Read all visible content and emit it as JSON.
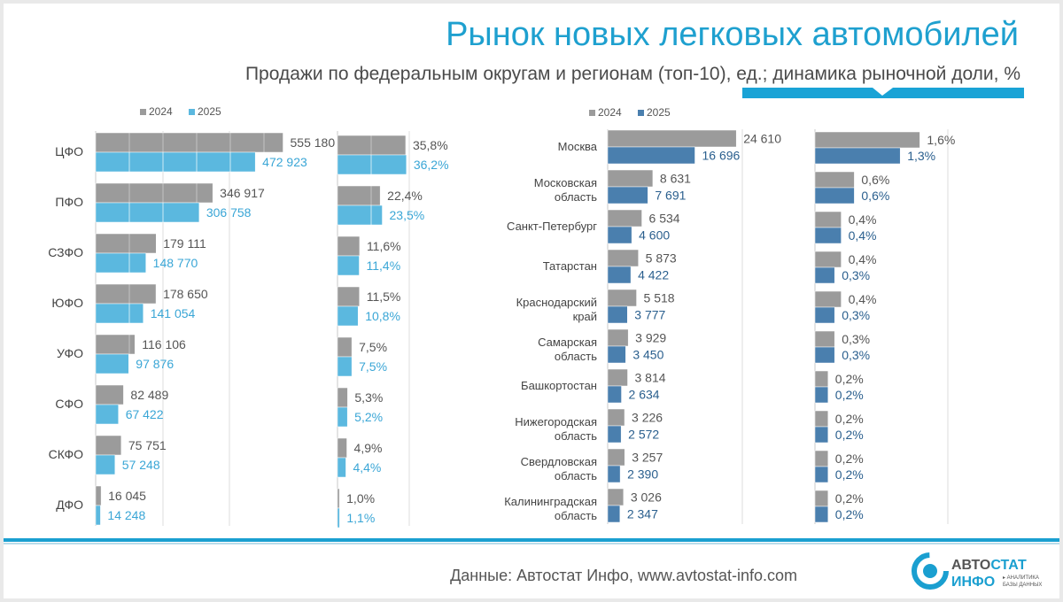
{
  "title": "Рынок новых легковых автомобилей",
  "subtitle": "Продажи по федеральным округам и регионам (топ-10), ед.; динамика рыночной доли, %",
  "footer": {
    "source": "Данные: Автостат Инфо, www.avtostat-info.com",
    "logo_line1_a": "АВТО",
    "logo_line1_b": "СТАТ",
    "logo_line2": "ИНФО",
    "logo_tag1": "▸ АНАЛИТИКА",
    "logo_tag2": "БАЗЫ ДАННЫХ"
  },
  "colors": {
    "y2024": "#9b9b9b",
    "y2025_districts": "#5bb8df",
    "y2025_regions": "#4a7fae",
    "title": "#1ea0cf",
    "accent_bar": "#1a9fd0"
  },
  "chart_data": [
    {
      "id": "districts-sales",
      "type": "bar",
      "orientation": "horizontal",
      "legend": [
        "2024",
        "2025"
      ],
      "categories": [
        "ЦФО",
        "ПФО",
        "СЗФО",
        "ЮФО",
        "УФО",
        "СФО",
        "СКФО",
        "ДФО"
      ],
      "series": [
        {
          "name": "2024",
          "values": [
            555180,
            346917,
            179111,
            178650,
            116106,
            82489,
            75751,
            16045
          ],
          "labels": [
            "555 180",
            "346 917",
            "179 111",
            "178 650",
            "116 106",
            "82 489",
            "75 751",
            "16 045"
          ]
        },
        {
          "name": "2025",
          "values": [
            472923,
            306758,
            148770,
            141054,
            97876,
            67422,
            57248,
            14248
          ],
          "labels": [
            "472 923",
            "306 758",
            "148 770",
            "141 054",
            "97 876",
            "67 422",
            "57 248",
            "14 248"
          ]
        }
      ],
      "xlim": [
        0,
        800000
      ],
      "grid": true
    },
    {
      "id": "districts-share",
      "type": "bar",
      "orientation": "horizontal",
      "categories": [
        "ЦФО",
        "ПФО",
        "СЗФО",
        "ЮФО",
        "УФО",
        "СФО",
        "СКФО",
        "ДФО"
      ],
      "series": [
        {
          "name": "2024",
          "values": [
            35.8,
            22.4,
            11.6,
            11.5,
            7.5,
            5.3,
            4.9,
            1.0
          ],
          "labels": [
            "35,8%",
            "22,4%",
            "11,6%",
            "11,5%",
            "7,5%",
            "5,3%",
            "4,9%",
            "1,0%"
          ]
        },
        {
          "name": "2025",
          "values": [
            36.2,
            23.5,
            11.4,
            10.8,
            7.5,
            5.2,
            4.4,
            1.1
          ],
          "labels": [
            "36,2%",
            "23,5%",
            "11,4%",
            "10,8%",
            "7,5%",
            "5,2%",
            "4,4%",
            "1,1%"
          ]
        }
      ],
      "xlim": [
        0,
        50
      ],
      "grid": true
    },
    {
      "id": "regions-sales",
      "type": "bar",
      "orientation": "horizontal",
      "legend": [
        "2024",
        "2025"
      ],
      "categories": [
        "Москва",
        "Московская область",
        "Санкт-Петербург",
        "Татарстан",
        "Краснодарский край",
        "Самарская область",
        "Башкортостан",
        "Нижегородская область",
        "Свердловская область",
        "Калининградская область"
      ],
      "category_lines": [
        [
          "Москва"
        ],
        [
          "Московская",
          "область"
        ],
        [
          "Санкт-Петербург"
        ],
        [
          "Татарстан"
        ],
        [
          "Краснодарский",
          "край"
        ],
        [
          "Самарская",
          "область"
        ],
        [
          "Башкортостан"
        ],
        [
          "Нижегородская",
          "область"
        ],
        [
          "Свердловская",
          "область"
        ],
        [
          "Калининградская",
          "область"
        ]
      ],
      "series": [
        {
          "name": "2024",
          "values": [
            24610,
            8631,
            6534,
            5873,
            5518,
            3929,
            3814,
            3226,
            3257,
            3026
          ],
          "labels": [
            "24 610",
            "8 631",
            "6 534",
            "5 873",
            "5 518",
            "3 929",
            "3 814",
            "3 226",
            "3 257",
            "3 026"
          ]
        },
        {
          "name": "2025",
          "values": [
            16696,
            7691,
            4600,
            4422,
            3777,
            3450,
            2634,
            2572,
            2390,
            2347
          ],
          "labels": [
            "16 696",
            "7 691",
            "4 600",
            "4 422",
            "3 777",
            "3 450",
            "2 634",
            "2 572",
            "2 390",
            "2 347"
          ]
        }
      ],
      "xlim": [
        0,
        50000
      ],
      "grid": true
    },
    {
      "id": "regions-share",
      "type": "bar",
      "orientation": "horizontal",
      "categories": [
        "Москва",
        "Московская область",
        "Санкт-Петербург",
        "Татарстан",
        "Краснодарский край",
        "Самарская область",
        "Башкортостан",
        "Нижегородская область",
        "Свердловская область",
        "Калининградская область"
      ],
      "series": [
        {
          "name": "2024",
          "values": [
            1.6,
            0.6,
            0.4,
            0.4,
            0.4,
            0.3,
            0.2,
            0.2,
            0.2,
            0.2
          ],
          "labels": [
            "1,6%",
            "0,6%",
            "0,4%",
            "0,4%",
            "0,4%",
            "0,3%",
            "0,2%",
            "0,2%",
            "0,2%",
            "0,2%"
          ]
        },
        {
          "name": "2025",
          "values": [
            1.3,
            0.6,
            0.4,
            0.3,
            0.3,
            0.3,
            0.2,
            0.2,
            0.2,
            0.2
          ],
          "labels": [
            "1,3%",
            "0,6%",
            "0,4%",
            "0,3%",
            "0,3%",
            "0,3%",
            "0,2%",
            "0,2%",
            "0,2%",
            "0,2%"
          ]
        }
      ],
      "xlim": [
        0,
        2.5
      ],
      "grid": true
    }
  ]
}
